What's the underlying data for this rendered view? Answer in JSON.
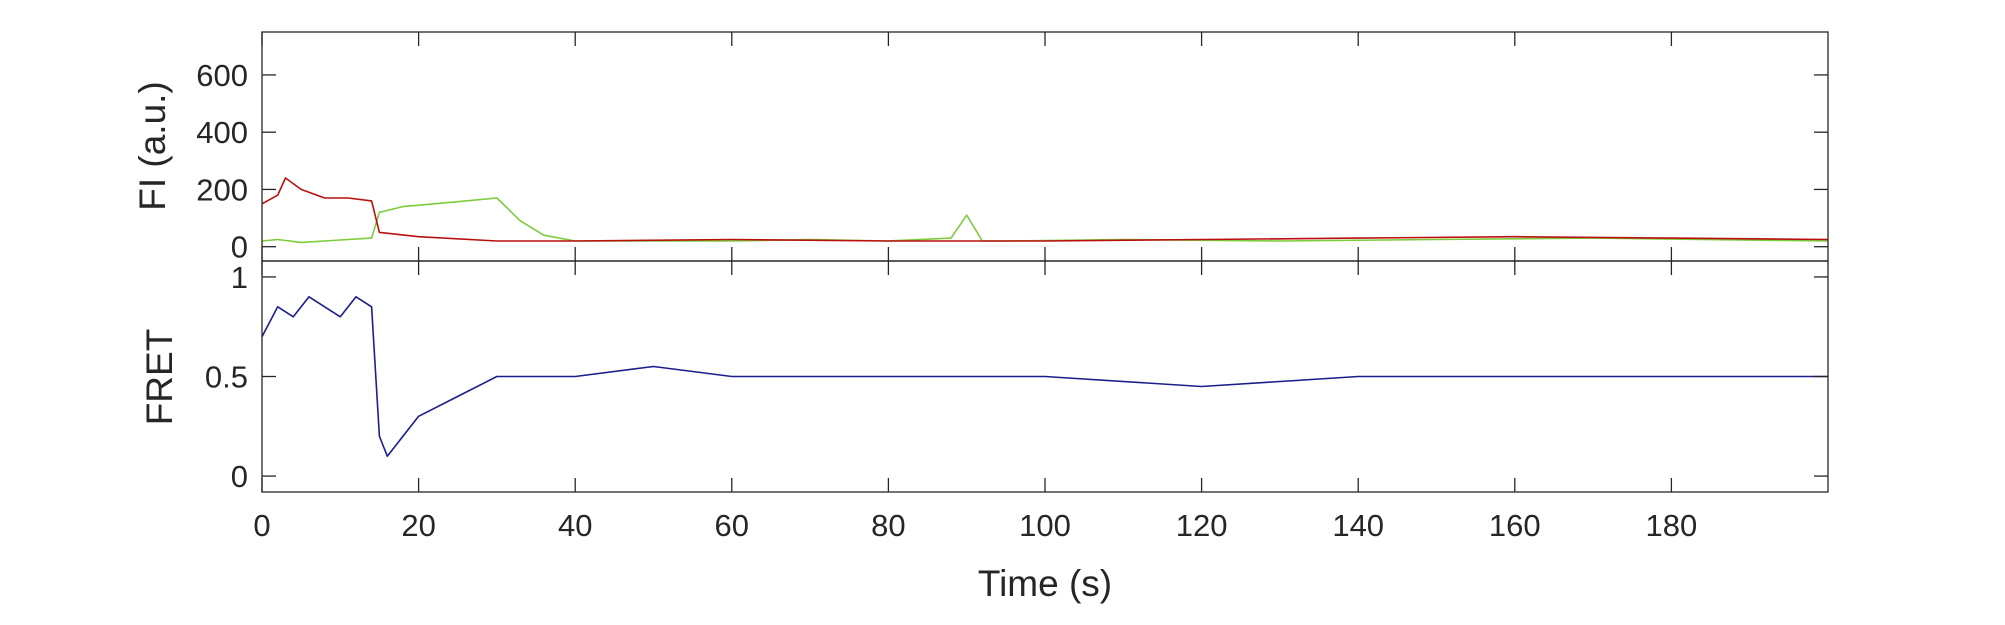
{
  "chart_data": [
    {
      "type": "line",
      "ylabel": "FI (a.u.)",
      "xlim": [
        0,
        200
      ],
      "ylim": [
        -50,
        750
      ],
      "yticks": [
        0,
        200,
        400,
        600
      ],
      "grid": false,
      "series": [
        {
          "color": "#7ccc3c",
          "x": [
            0,
            2,
            5,
            8,
            11,
            14,
            15,
            18,
            22,
            26,
            30,
            33,
            36,
            40,
            50,
            60,
            70,
            80,
            88,
            90,
            92,
            95,
            110,
            130,
            150,
            170,
            200
          ],
          "y": [
            20,
            25,
            15,
            20,
            25,
            30,
            120,
            140,
            150,
            160,
            170,
            90,
            40,
            20,
            20,
            20,
            25,
            20,
            30,
            110,
            20,
            20,
            25,
            20,
            25,
            30,
            20
          ]
        },
        {
          "color": "#b90f0f",
          "x": [
            0,
            2,
            3,
            5,
            8,
            11,
            14,
            15,
            20,
            30,
            40,
            60,
            80,
            100,
            120,
            140,
            160,
            180,
            200
          ],
          "y": [
            150,
            180,
            240,
            200,
            170,
            170,
            160,
            50,
            35,
            20,
            20,
            25,
            20,
            20,
            25,
            30,
            35,
            30,
            25
          ]
        }
      ]
    },
    {
      "type": "line",
      "xlabel": "Time (s)",
      "ylabel": "FRET",
      "xlim": [
        0,
        200
      ],
      "ylim": [
        -0.08,
        1.08
      ],
      "xticks": [
        0,
        20,
        40,
        60,
        80,
        100,
        120,
        140,
        160,
        180
      ],
      "yticks": [
        0,
        0.5,
        1
      ],
      "grid": false,
      "series": [
        {
          "color": "#1b1e8c",
          "x": [
            0,
            2,
            4,
            6,
            8,
            10,
            12,
            14,
            15,
            16,
            20,
            25,
            30,
            40,
            50,
            60,
            80,
            100,
            120,
            140,
            160,
            180,
            200
          ],
          "y": [
            0.7,
            0.85,
            0.8,
            0.9,
            0.85,
            0.8,
            0.9,
            0.85,
            0.2,
            0.1,
            0.3,
            0.4,
            0.5,
            0.5,
            0.55,
            0.5,
            0.5,
            0.5,
            0.45,
            0.5,
            0.5,
            0.5,
            0.5
          ]
        }
      ]
    }
  ]
}
